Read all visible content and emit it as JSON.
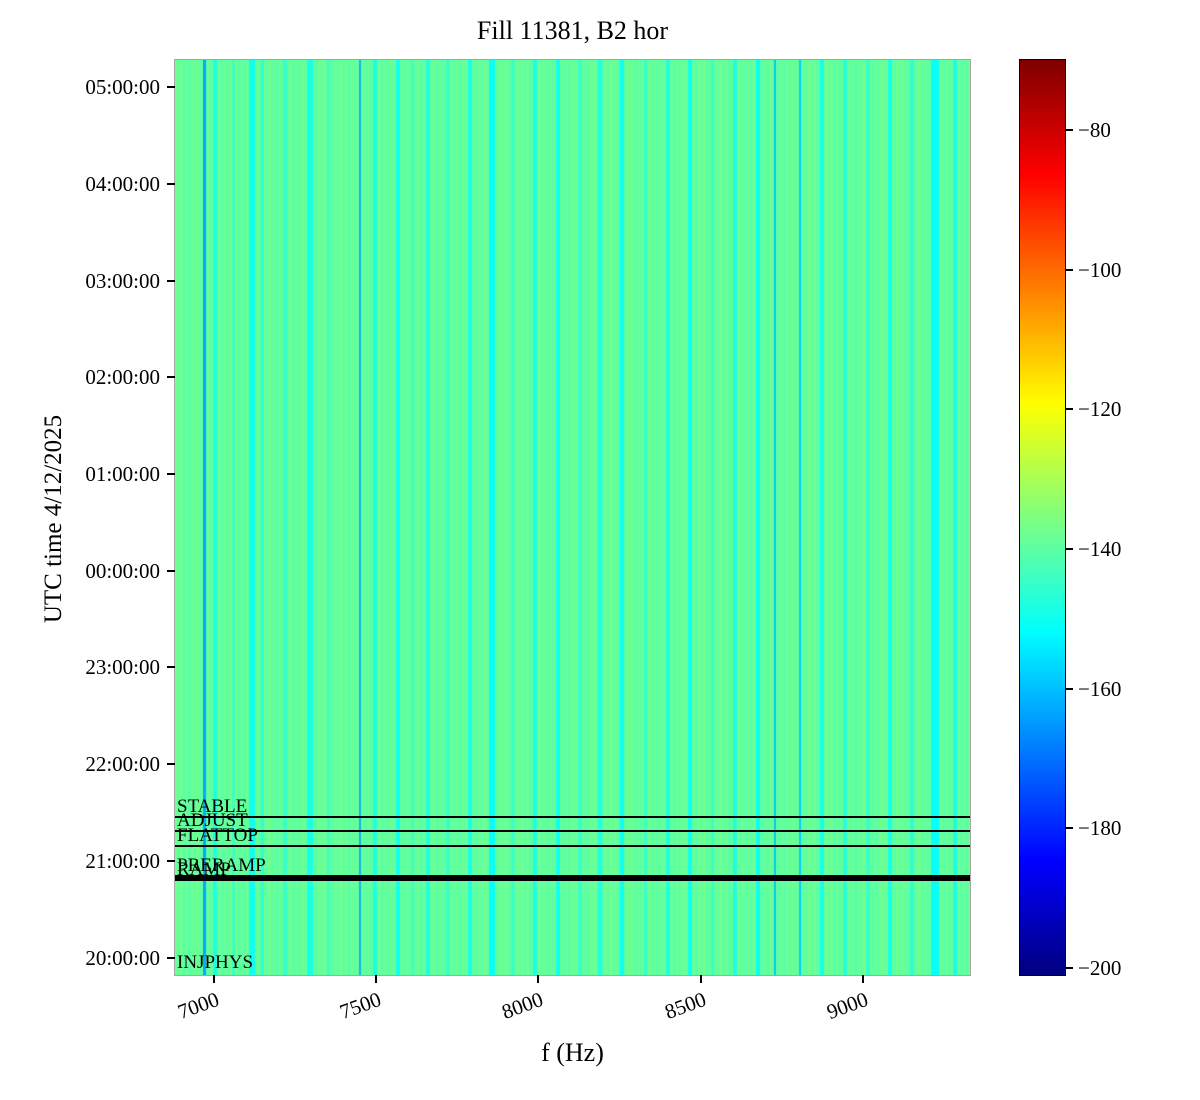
{
  "chart_data": {
    "type": "heatmap",
    "title": "Fill 11381, B2 hor",
    "xlabel": "f (Hz)",
    "ylabel": "UTC time 4/12/2025",
    "colormap": "jet",
    "x_range_hz": [
      6880,
      9330
    ],
    "y_range_hours": [
      19.82,
      29.28
    ],
    "value_range_db": [
      -201,
      -70
    ],
    "background_value_db": -139,
    "grid": false,
    "legend_position": "none",
    "x_ticks": [
      {
        "value": 7000,
        "label": "7000"
      },
      {
        "value": 7500,
        "label": "7500"
      },
      {
        "value": 8000,
        "label": "8000"
      },
      {
        "value": 8500,
        "label": "8500"
      },
      {
        "value": 9000,
        "label": "9000"
      }
    ],
    "y_ticks": [
      {
        "hour": 20,
        "label": "20:00:00"
      },
      {
        "hour": 21,
        "label": "21:00:00"
      },
      {
        "hour": 22,
        "label": "22:00:00"
      },
      {
        "hour": 23,
        "label": "23:00:00"
      },
      {
        "hour": 24,
        "label": "00:00:00"
      },
      {
        "hour": 25,
        "label": "01:00:00"
      },
      {
        "hour": 26,
        "label": "02:00:00"
      },
      {
        "hour": 27,
        "label": "03:00:00"
      },
      {
        "hour": 28,
        "label": "04:00:00"
      },
      {
        "hour": 29,
        "label": "05:00:00"
      }
    ],
    "colorbar_ticks": [
      {
        "value": -80,
        "label": "−80"
      },
      {
        "value": -100,
        "label": "−100"
      },
      {
        "value": -120,
        "label": "−120"
      },
      {
        "value": -140,
        "label": "−140"
      },
      {
        "value": -160,
        "label": "−160"
      },
      {
        "value": -180,
        "label": "−180"
      },
      {
        "value": -200,
        "label": "−200"
      }
    ],
    "stripes": [
      {
        "f": 6972,
        "w": 10,
        "v": -163
      },
      {
        "f": 7003,
        "w": 14,
        "v": -148
      },
      {
        "f": 7060,
        "w": 10,
        "v": -144
      },
      {
        "f": 7117,
        "w": 16,
        "v": -150
      },
      {
        "f": 7150,
        "w": 10,
        "v": -146
      },
      {
        "f": 7219,
        "w": 12,
        "v": -145
      },
      {
        "f": 7296,
        "w": 16,
        "v": -149
      },
      {
        "f": 7352,
        "w": 10,
        "v": -144
      },
      {
        "f": 7450,
        "w": 8,
        "v": -161
      },
      {
        "f": 7496,
        "w": 14,
        "v": -148
      },
      {
        "f": 7567,
        "w": 12,
        "v": -150
      },
      {
        "f": 7612,
        "w": 10,
        "v": -144
      },
      {
        "f": 7660,
        "w": 14,
        "v": -148
      },
      {
        "f": 7721,
        "w": 10,
        "v": -145
      },
      {
        "f": 7789,
        "w": 12,
        "v": -149
      },
      {
        "f": 7857,
        "w": 16,
        "v": -151
      },
      {
        "f": 7919,
        "w": 10,
        "v": -145
      },
      {
        "f": 7990,
        "w": 12,
        "v": -148
      },
      {
        "f": 8060,
        "w": 14,
        "v": -150
      },
      {
        "f": 8128,
        "w": 10,
        "v": -145
      },
      {
        "f": 8190,
        "w": 12,
        "v": -148
      },
      {
        "f": 8258,
        "w": 14,
        "v": -150
      },
      {
        "f": 8330,
        "w": 10,
        "v": -145
      },
      {
        "f": 8399,
        "w": 12,
        "v": -148
      },
      {
        "f": 8467,
        "w": 14,
        "v": -150
      },
      {
        "f": 8536,
        "w": 10,
        "v": -145
      },
      {
        "f": 8606,
        "w": 12,
        "v": -148
      },
      {
        "f": 8677,
        "w": 14,
        "v": -151
      },
      {
        "f": 8729,
        "w": 8,
        "v": -159
      },
      {
        "f": 8806,
        "w": 8,
        "v": -158
      },
      {
        "f": 8874,
        "w": 14,
        "v": -149
      },
      {
        "f": 8945,
        "w": 12,
        "v": -147
      },
      {
        "f": 9016,
        "w": 10,
        "v": -145
      },
      {
        "f": 9083,
        "w": 14,
        "v": -149
      },
      {
        "f": 9151,
        "w": 10,
        "v": -146
      },
      {
        "f": 9222,
        "w": 22,
        "v": -151
      },
      {
        "f": 9284,
        "w": 14,
        "v": -149
      }
    ],
    "beam_modes": [
      {
        "label": "STABLE",
        "hour": 21.458,
        "line_width": 2
      },
      {
        "label": "ADJUST",
        "hour": 21.313,
        "line_width": 2
      },
      {
        "label": "FLATTOP",
        "hour": 21.158,
        "line_width": 2
      },
      {
        "label": "PRERAMP",
        "hour": 20.842,
        "line_width": 3
      },
      {
        "label": "RAMP",
        "hour": 20.806,
        "line_width": 3
      },
      {
        "label": "INJPHYS",
        "hour": 19.84,
        "line_width": 0
      }
    ]
  }
}
